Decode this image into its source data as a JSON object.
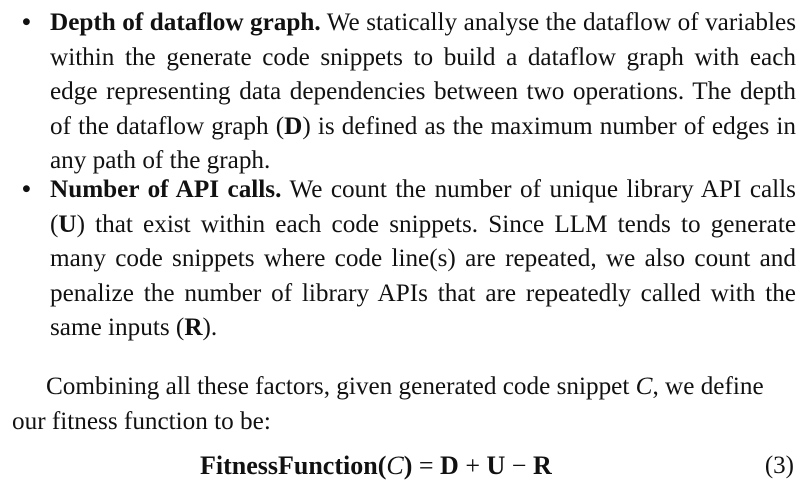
{
  "bullets": [
    {
      "marker": "•",
      "lead": "Depth of dataflow graph.",
      "text_before": " We statically analyse the dataflow of variables within the generate code snippets to build a dataflow graph with each edge representing data dependencies between two operations. The depth of the dataflow graph (",
      "symbol": "D",
      "text_after": ") is defined as the maximum number of edges in any path of the graph."
    },
    {
      "marker": "•",
      "lead": "Number of API calls.",
      "text_before": " We count the number of unique library API calls (",
      "symbol": "U",
      "text_middle": ") that exist within each code snippets. Since LLM tends to generate many code snippets where code line(s) are repeated, we also count and penalize the number of library APIs that are repeatedly called with the same inputs (",
      "symbol2": "R",
      "text_after": ")."
    }
  ],
  "paragraph": {
    "text_before": "Combining all these factors, given generated code snippet ",
    "variable": "C",
    "text_after": ", we define our fitness function to be:"
  },
  "equation": {
    "function_name": "FitnessFunction",
    "open_paren": "(",
    "variable": "C",
    "close_paren": ")",
    "equals": " = ",
    "term1": "D",
    "plus": " + ",
    "term2": "U",
    "minus": " − ",
    "term3": "R",
    "number": "(3)"
  }
}
